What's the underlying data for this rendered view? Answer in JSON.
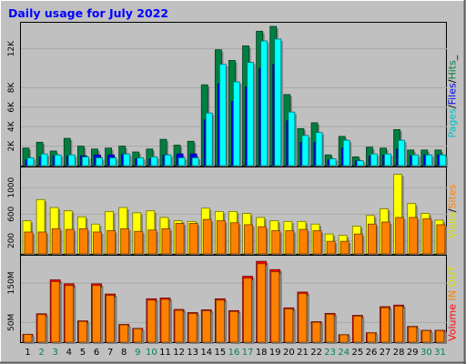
{
  "title": "Daily usage for July 2022",
  "colors": {
    "background": "#c0c0c0",
    "plot_bg": "#c0c0c0",
    "pages": "#00ffff",
    "files": "#0000ff",
    "hits": "#008040",
    "visits": "#ffff00",
    "sites": "#ff8000",
    "volume": "#ff0000",
    "in": "#ff8000",
    "out": "#ffff00",
    "weekend_day": "#00805c",
    "weekday": "#000000"
  },
  "panels": {
    "hits": {
      "label": {
        "pages": "Pages",
        "sep1": "/",
        "files": "Files",
        "sep2": "/",
        "hits": "Hits",
        "sep3": "_"
      },
      "ticks": [
        "2K",
        "4K",
        "6K",
        "8K",
        "12K"
      ]
    },
    "visits": {
      "label": {
        "visits": "Visits",
        "sep": "/",
        "sites": "Sites"
      },
      "ticks": [
        "200",
        "600",
        "1000"
      ]
    },
    "volume": {
      "label": {
        "volume": "Volume",
        "sep1": " ",
        "in": "IN",
        "sep2": " ",
        "out": "OUT"
      },
      "ticks": [
        "50M",
        "150M"
      ]
    }
  },
  "chart_data": [
    {
      "type": "bar",
      "categories": [
        "1",
        "2",
        "3",
        "4",
        "5",
        "6",
        "7",
        "8",
        "9",
        "10",
        "11",
        "12",
        "13",
        "14",
        "15",
        "16",
        "17",
        "18",
        "19",
        "20",
        "21",
        "22",
        "23",
        "24",
        "25",
        "26",
        "27",
        "28",
        "29",
        "30",
        "31"
      ],
      "weekend_days": [
        2,
        3,
        9,
        10,
        16,
        17,
        23,
        24,
        30,
        31
      ],
      "ylim": [
        0,
        14300
      ],
      "series": [
        {
          "name": "Hits",
          "values": [
            1800,
            2400,
            1500,
            2800,
            2000,
            1700,
            1800,
            2000,
            1400,
            1700,
            2700,
            2100,
            2500,
            8300,
            11900,
            10800,
            12300,
            13800,
            14300,
            7300,
            3800,
            4400,
            1100,
            3000,
            900,
            1900,
            1800,
            3700,
            1600,
            1600,
            1600
          ]
        },
        {
          "name": "Files",
          "values": [
            600,
            900,
            1000,
            1000,
            1000,
            1100,
            1100,
            1200,
            700,
            700,
            1100,
            1200,
            1200,
            4700,
            8400,
            6600,
            8100,
            10000,
            10400,
            4600,
            2400,
            2400,
            600,
            1800,
            500,
            1000,
            1100,
            1700,
            1000,
            1100,
            1100
          ]
        },
        {
          "name": "Pages",
          "values": [
            800,
            1200,
            1100,
            1100,
            900,
            800,
            800,
            1200,
            800,
            900,
            1100,
            800,
            800,
            5400,
            10400,
            8600,
            10600,
            12800,
            13000,
            5500,
            3100,
            3400,
            700,
            2600,
            500,
            1200,
            1200,
            2600,
            1100,
            1100,
            1100
          ]
        }
      ]
    },
    {
      "type": "bar",
      "categories": [
        "1",
        "2",
        "3",
        "4",
        "5",
        "6",
        "7",
        "8",
        "9",
        "10",
        "11",
        "12",
        "13",
        "14",
        "15",
        "16",
        "17",
        "18",
        "19",
        "20",
        "21",
        "22",
        "23",
        "24",
        "25",
        "26",
        "27",
        "28",
        "29",
        "30",
        "31"
      ],
      "ylim": [
        0,
        1250
      ],
      "series": [
        {
          "name": "Visits",
          "values": [
            500,
            820,
            700,
            650,
            560,
            450,
            640,
            700,
            620,
            650,
            550,
            500,
            490,
            690,
            640,
            640,
            610,
            550,
            500,
            490,
            490,
            450,
            300,
            280,
            420,
            580,
            680,
            1200,
            760,
            610,
            510
          ]
        },
        {
          "name": "Sites",
          "values": [
            330,
            330,
            380,
            370,
            380,
            330,
            350,
            380,
            340,
            360,
            380,
            460,
            460,
            520,
            500,
            470,
            440,
            410,
            350,
            350,
            370,
            350,
            190,
            190,
            300,
            450,
            480,
            550,
            550,
            530,
            440
          ]
        }
      ]
    },
    {
      "type": "bar",
      "categories": [
        "1",
        "2",
        "3",
        "4",
        "5",
        "6",
        "7",
        "8",
        "9",
        "10",
        "11",
        "12",
        "13",
        "14",
        "15",
        "16",
        "17",
        "18",
        "19",
        "20",
        "21",
        "22",
        "23",
        "24",
        "25",
        "26",
        "27",
        "28",
        "29",
        "30",
        "31"
      ],
      "ylim": [
        0,
        210
      ],
      "series": [
        {
          "name": "Volume",
          "values": [
            20,
            72,
            158,
            148,
            54,
            148,
            122,
            45,
            35,
            110,
            112,
            83,
            75,
            82,
            110,
            80,
            167,
            205,
            184,
            87,
            127,
            52,
            73,
            19,
            68,
            24,
            90,
            94,
            40,
            30,
            30
          ]
        }
      ]
    }
  ]
}
